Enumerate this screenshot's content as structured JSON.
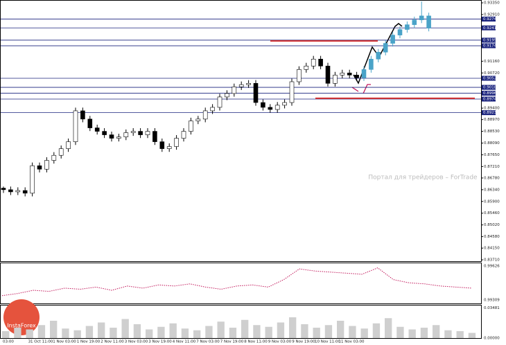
{
  "chart_data": {
    "type": "candlestick",
    "ylim": [
      0.8366,
      0.9343
    ],
    "yticks": [
      {
        "value": 0.9335,
        "label": "0.93350"
      },
      {
        "value": 0.9291,
        "label": "0.92910"
      },
      {
        "value": 0.9116,
        "label": "0.91160"
      },
      {
        "value": 0.9072,
        "label": "0.90720"
      },
      {
        "value": 0.894,
        "label": "0.89400"
      },
      {
        "value": 0.8897,
        "label": "0.88970"
      },
      {
        "value": 0.8853,
        "label": "0.88530"
      },
      {
        "value": 0.8809,
        "label": "0.88090"
      },
      {
        "value": 0.8765,
        "label": "0.87650"
      },
      {
        "value": 0.8721,
        "label": "0.87210"
      },
      {
        "value": 0.8678,
        "label": "0.86780"
      },
      {
        "value": 0.8634,
        "label": "0.86340"
      },
      {
        "value": 0.859,
        "label": "0.85900"
      },
      {
        "value": 0.8546,
        "label": "0.85460"
      },
      {
        "value": 0.8502,
        "label": "0.85020"
      },
      {
        "value": 0.8458,
        "label": "0.84580"
      },
      {
        "value": 0.8415,
        "label": "0.84150"
      },
      {
        "value": 0.8371,
        "label": "0.83710"
      }
    ],
    "levels": [
      {
        "value": 0.9274,
        "label": "0.9274"
      },
      {
        "value": 0.9241,
        "label": "0.9241"
      },
      {
        "value": 0.9195,
        "label": "0.9195"
      },
      {
        "value": 0.9174,
        "label": "0.9174"
      },
      {
        "value": 0.9052,
        "label": "0.9052"
      },
      {
        "value": 0.9018,
        "label": "0.9018"
      },
      {
        "value": 0.8996,
        "label": "0.8996"
      },
      {
        "value": 0.8974,
        "label": "0.8974"
      },
      {
        "value": 0.8923,
        "label": "0.8923"
      }
    ],
    "level_color": "#1a237e",
    "red_lines": [
      0.9192,
      0.8977
    ],
    "red_color": "#d32f2f",
    "up_color": "#ffffff",
    "down_color": "#000000",
    "forecast_color": "#4aa3c8",
    "ohlc": [
      [
        0.864,
        0.8646,
        0.8622,
        0.8634
      ],
      [
        0.8634,
        0.8646,
        0.8614,
        0.8626
      ],
      [
        0.8626,
        0.8643,
        0.8614,
        0.8631
      ],
      [
        0.8631,
        0.8643,
        0.8609,
        0.8621
      ],
      [
        0.8621,
        0.8736,
        0.8609,
        0.8724
      ],
      [
        0.8724,
        0.8736,
        0.8699,
        0.8711
      ],
      [
        0.8711,
        0.8756,
        0.8699,
        0.8744
      ],
      [
        0.8744,
        0.8775,
        0.8732,
        0.8763
      ],
      [
        0.8763,
        0.88,
        0.8751,
        0.8788
      ],
      [
        0.8788,
        0.8826,
        0.8776,
        0.8814
      ],
      [
        0.8814,
        0.8942,
        0.8802,
        0.893
      ],
      [
        0.893,
        0.8942,
        0.8887,
        0.8899
      ],
      [
        0.8899,
        0.8911,
        0.8854,
        0.8866
      ],
      [
        0.8866,
        0.8878,
        0.8841,
        0.8853
      ],
      [
        0.8853,
        0.8865,
        0.8828,
        0.884
      ],
      [
        0.884,
        0.8852,
        0.8815,
        0.8827
      ],
      [
        0.8827,
        0.8844,
        0.8815,
        0.8832
      ],
      [
        0.8832,
        0.886,
        0.882,
        0.8848
      ],
      [
        0.8848,
        0.8865,
        0.8836,
        0.8853
      ],
      [
        0.8853,
        0.8865,
        0.8828,
        0.884
      ],
      [
        0.884,
        0.8865,
        0.8828,
        0.8853
      ],
      [
        0.8853,
        0.8865,
        0.8802,
        0.8814
      ],
      [
        0.8814,
        0.8826,
        0.8776,
        0.8788
      ],
      [
        0.8788,
        0.8808,
        0.8776,
        0.8796
      ],
      [
        0.8796,
        0.8839,
        0.8784,
        0.8827
      ],
      [
        0.8827,
        0.8865,
        0.8815,
        0.8853
      ],
      [
        0.8853,
        0.8904,
        0.8841,
        0.8892
      ],
      [
        0.8892,
        0.8911,
        0.888,
        0.8899
      ],
      [
        0.8899,
        0.8942,
        0.8887,
        0.893
      ],
      [
        0.893,
        0.8955,
        0.8918,
        0.8943
      ],
      [
        0.8943,
        0.8994,
        0.8931,
        0.8982
      ],
      [
        0.8982,
        0.9007,
        0.897,
        0.8995
      ],
      [
        0.8995,
        0.9032,
        0.8983,
        0.902
      ],
      [
        0.902,
        0.904,
        0.9008,
        0.9028
      ],
      [
        0.9028,
        0.9045,
        0.9016,
        0.9033
      ],
      [
        0.9033,
        0.9045,
        0.8949,
        0.8961
      ],
      [
        0.8961,
        0.8973,
        0.8931,
        0.8943
      ],
      [
        0.8943,
        0.8955,
        0.8923,
        0.8935
      ],
      [
        0.8935,
        0.8963,
        0.8923,
        0.8951
      ],
      [
        0.8951,
        0.8973,
        0.8939,
        0.8961
      ],
      [
        0.8961,
        0.9051,
        0.8949,
        0.9039
      ],
      [
        0.9039,
        0.9097,
        0.9027,
        0.9085
      ],
      [
        0.9085,
        0.911,
        0.9073,
        0.9098
      ],
      [
        0.9098,
        0.9136,
        0.9086,
        0.9124
      ],
      [
        0.9124,
        0.9136,
        0.9086,
        0.9098
      ],
      [
        0.9098,
        0.911,
        0.9021,
        0.9033
      ],
      [
        0.9033,
        0.9076,
        0.9021,
        0.9064
      ],
      [
        0.9064,
        0.9084,
        0.9052,
        0.9072
      ],
      [
        0.9072,
        0.9084,
        0.9052,
        0.9064
      ],
      [
        0.9064,
        0.9076,
        0.9042,
        0.9054
      ]
    ],
    "forecast_ohlc": [
      [
        0.9054,
        0.9097,
        0.9042,
        0.9085
      ],
      [
        0.9085,
        0.9136,
        0.9073,
        0.9124
      ],
      [
        0.9124,
        0.9162,
        0.9112,
        0.915
      ],
      [
        0.915,
        0.9195,
        0.9138,
        0.9183
      ],
      [
        0.9183,
        0.9226,
        0.9171,
        0.9214
      ],
      [
        0.9214,
        0.9247,
        0.9202,
        0.9235
      ],
      [
        0.9235,
        0.9265,
        0.9223,
        0.9253
      ],
      [
        0.9253,
        0.9283,
        0.9241,
        0.9271
      ],
      [
        0.9271,
        0.934,
        0.9259,
        0.9286
      ],
      [
        0.9286,
        0.9298,
        0.9228,
        0.924
      ]
    ],
    "xlabels": [
      "03:00",
      "31 Oct 11:00",
      "1 Nov 03:00",
      "1 Nov 19:00",
      "2 Nov 11:00",
      "3 Nov 03:00",
      "3 Nov 19:00",
      "4 Nov 11:00",
      "7 Nov 03:00",
      "7 Nov 19:00",
      "8 Nov 11:00",
      "9 Nov 03:00",
      "9 Nov 19:00",
      "10 Nov 11:00",
      "11 Nov 03:00"
    ],
    "osc": {
      "color": "#c2185b",
      "ylim": [
        0.9929,
        0.9964
      ],
      "yticks": [
        {
          "value": 0.99626,
          "label": "0.99626"
        },
        {
          "value": 0.99309,
          "label": "0.99309"
        }
      ],
      "values": [
        0.9935,
        0.9937,
        0.994,
        0.9939,
        0.9942,
        0.9941,
        0.9943,
        0.994,
        0.9944,
        0.9942,
        0.9945,
        0.9944,
        0.9946,
        0.9943,
        0.9941,
        0.9944,
        0.9945,
        0.9943,
        0.995,
        0.996,
        0.9958,
        0.9957,
        0.9956,
        0.9955,
        0.9961,
        0.995,
        0.9947,
        0.9946,
        0.9944,
        0.9943,
        0.9942
      ]
    },
    "volume": {
      "color": "#cfcfcf",
      "ylim": [
        0,
        0.036
      ],
      "yticks": [
        {
          "value": 0.03481,
          "label": "0.03481"
        },
        {
          "value": 0,
          "label": "0.00000"
        }
      ],
      "values": [
        0.008,
        0.012,
        0.01,
        0.015,
        0.02,
        0.011,
        0.009,
        0.014,
        0.018,
        0.012,
        0.022,
        0.016,
        0.01,
        0.013,
        0.017,
        0.011,
        0.009,
        0.014,
        0.019,
        0.012,
        0.021,
        0.015,
        0.013,
        0.018,
        0.024,
        0.016,
        0.012,
        0.015,
        0.02,
        0.014,
        0.011,
        0.017,
        0.023,
        0.013,
        0.01,
        0.012,
        0.015,
        0.009,
        0.008,
        0.006
      ]
    },
    "watermark": "Портал для трейдеров – ForTrade",
    "logo": "InstaForex"
  }
}
